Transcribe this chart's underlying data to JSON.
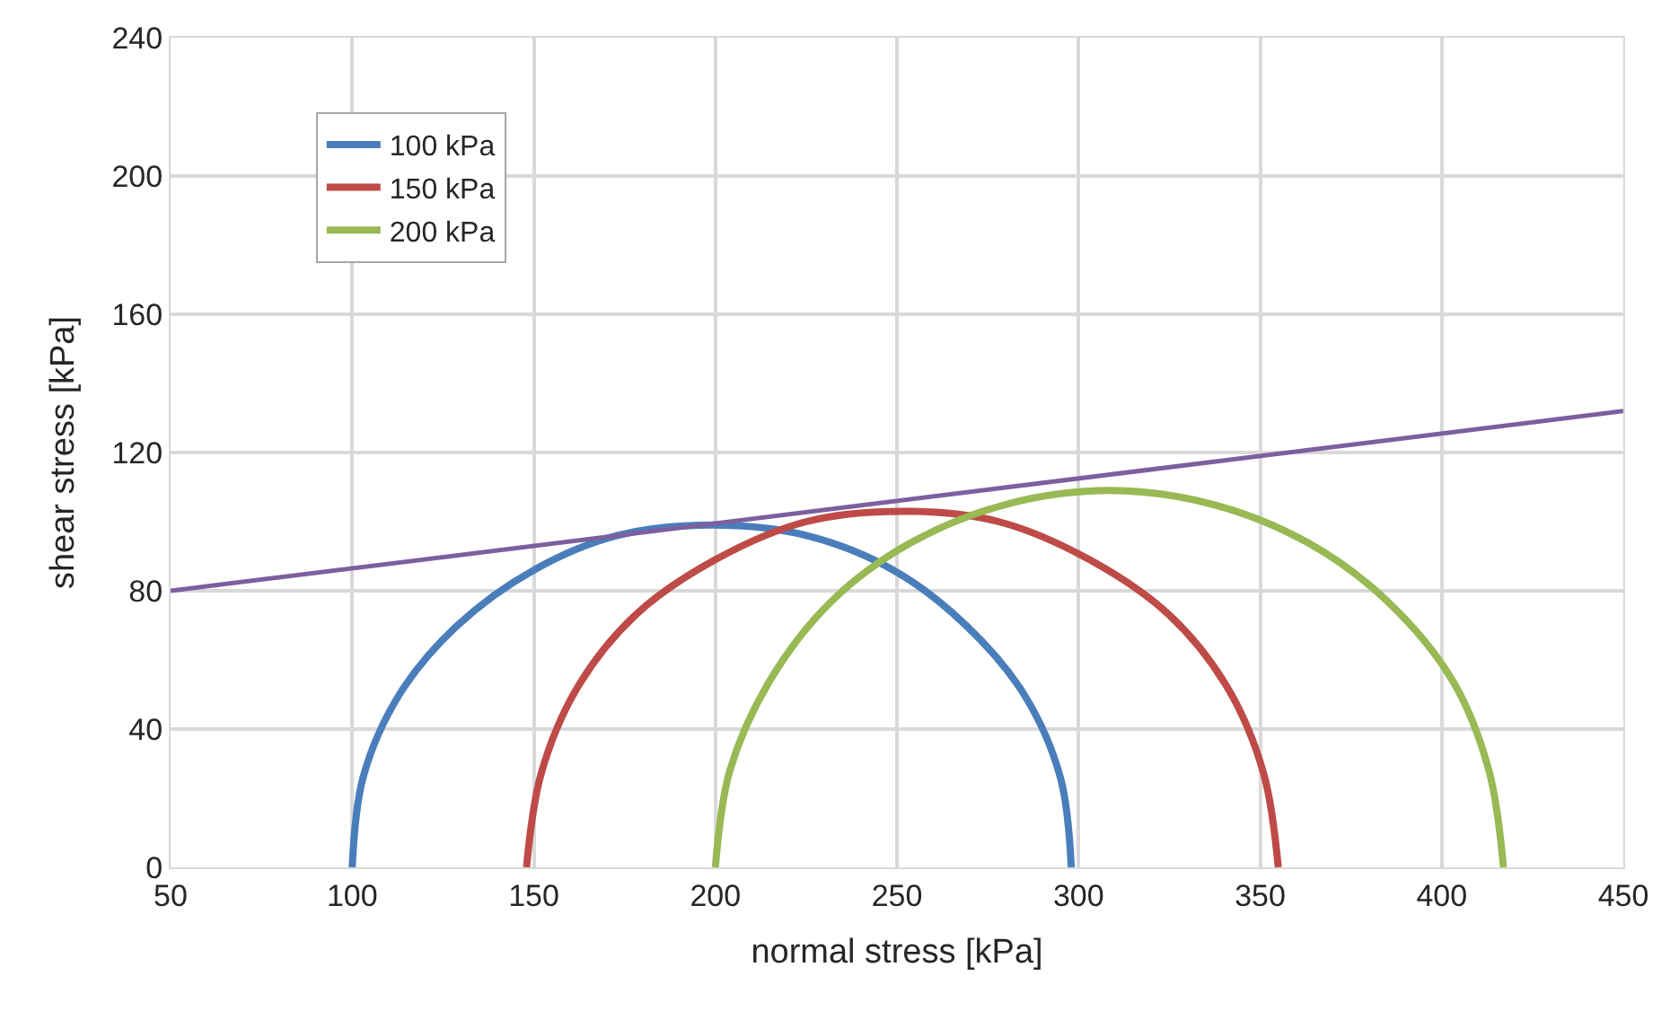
{
  "chart_data": {
    "type": "line",
    "xlabel": "normal stress [kPa]",
    "ylabel": "shear stress [kPa]",
    "xlim": [
      50,
      450
    ],
    "xticks": [
      50,
      100,
      150,
      200,
      250,
      300,
      350,
      400,
      450
    ],
    "ylim": [
      0,
      240
    ],
    "yticks": [
      0,
      40,
      80,
      120,
      160,
      200,
      240
    ],
    "grid": true,
    "legend": "top left",
    "marker": "none",
    "line_style": "solid",
    "series": [
      {
        "name": "100 kPa",
        "color": "#4a7ebb",
        "x": [
          100,
          103,
          113,
          129,
          150,
          173,
          199,
          225,
          249,
          269,
          285,
          295,
          298
        ],
        "values": [
          0,
          26,
          50,
          70,
          86,
          96,
          99,
          96,
          86,
          70,
          50,
          26,
          0
        ]
      },
      {
        "name": "150 kPa",
        "color": "#be4b48",
        "x": [
          148,
          152,
          162,
          178,
          200,
          225,
          252,
          278,
          303,
          325,
          341,
          351,
          355
        ],
        "values": [
          0,
          27,
          52,
          73,
          89,
          100,
          103,
          100,
          89,
          73,
          52,
          27,
          0
        ]
      },
      {
        "name": "200 kPa",
        "color": "#98b954",
        "x": [
          200,
          204,
          215,
          232,
          254,
          280,
          309,
          337,
          363,
          385,
          403,
          413,
          417
        ],
        "values": [
          0,
          28,
          54,
          77,
          94,
          105,
          109,
          105,
          94,
          77,
          54,
          28,
          0
        ]
      },
      {
        "color": "#7d5fa0",
        "x": [
          50,
          450
        ],
        "values": [
          80,
          132
        ]
      }
    ]
  }
}
